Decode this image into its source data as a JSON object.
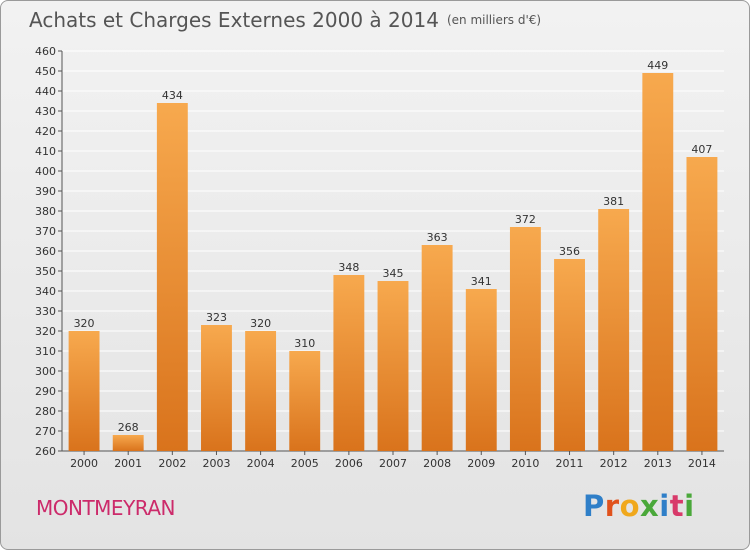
{
  "title": "Achats et Charges Externes 2000 à 2014",
  "unit": "(en milliers d'€)",
  "region": "MONTMEYRAN",
  "logo": {
    "letters": [
      "P",
      "r",
      "o",
      "x",
      "i",
      "t",
      "i"
    ],
    "colors": [
      "#2f7fc8",
      "#e0521c",
      "#f0a81c",
      "#4aa83a",
      "#2f7fc8",
      "#d83a6a",
      "#4aa83a"
    ]
  },
  "colors": {
    "bar_light": "#f7a94e",
    "bar_dark": "#d9731c",
    "grid": "#ffffff"
  },
  "chart_data": {
    "type": "bar",
    "categories": [
      "2000",
      "2001",
      "2002",
      "2003",
      "2004",
      "2005",
      "2006",
      "2007",
      "2008",
      "2009",
      "2010",
      "2011",
      "2012",
      "2013",
      "2014"
    ],
    "values": [
      320,
      268,
      434,
      323,
      320,
      310,
      348,
      345,
      363,
      341,
      372,
      356,
      381,
      449,
      407
    ],
    "ylim": [
      260,
      460
    ],
    "ytick_step": 10,
    "grid": true,
    "xlabel": "",
    "ylabel": ""
  }
}
